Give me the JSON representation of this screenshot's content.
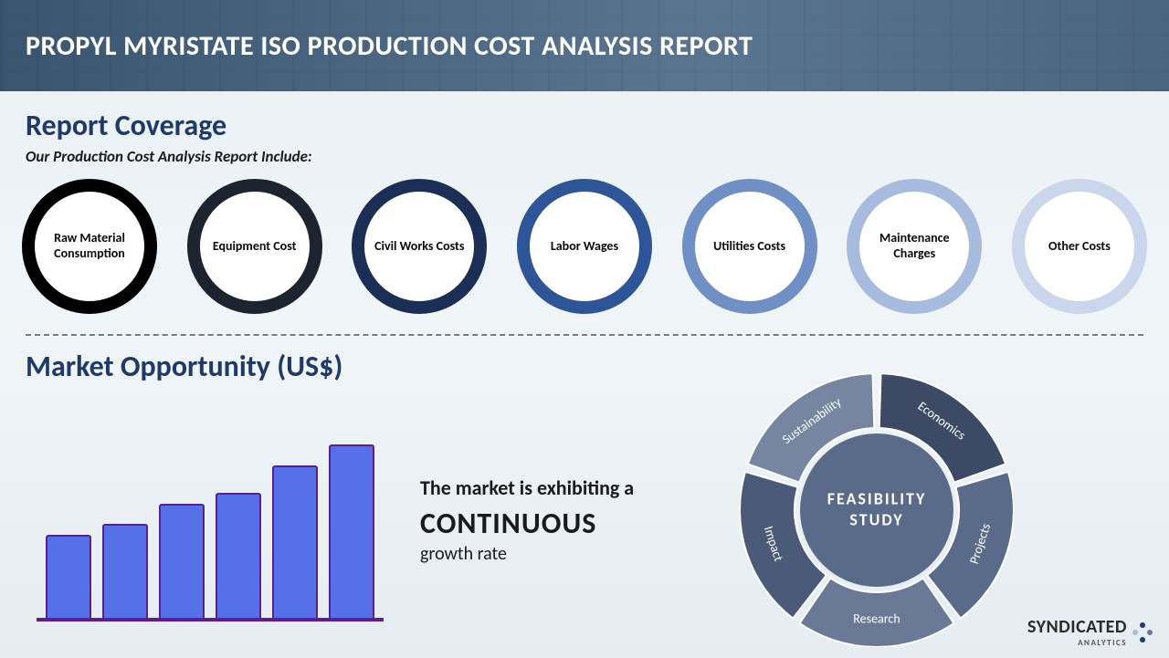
{
  "header": {
    "title": "PROPYL MYRISTATE ISO PRODUCTION COST ANALYSIS REPORT"
  },
  "coverage": {
    "title": "Report Coverage",
    "subtitle": "Our Production Cost Analysis Report Include:",
    "items": [
      {
        "label": "Raw Material Consumption",
        "ring_color": "#000000"
      },
      {
        "label": "Equipment Cost",
        "ring_color": "#1c2430"
      },
      {
        "label": "Civil Works Costs",
        "ring_color": "#1b2e55"
      },
      {
        "label": "Labor Wages",
        "ring_color": "#2d5598"
      },
      {
        "label": "Utilities Costs",
        "ring_color": "#6f8fc5"
      },
      {
        "label": "Maintenance Charges",
        "ring_color": "#a7bbde"
      },
      {
        "label": "Other Costs",
        "ring_color": "#c9d6eb"
      }
    ],
    "circle_border_width": 14,
    "circle_diameter": 148,
    "circle_fill": "#ffffff",
    "label_fontsize": 14,
    "label_color": "#0a0a0a"
  },
  "market": {
    "title": "Market Opportunity (US$)",
    "chart": {
      "type": "bar",
      "values": [
        48,
        54,
        66,
        72,
        88,
        100
      ],
      "bar_color": "#5570e8",
      "bar_border_color": "#5b1f8e",
      "axis_color": "#5b1f8e",
      "bar_gap": 12,
      "ylim": [
        0,
        100
      ]
    },
    "text_line1": "The market is exhibiting a",
    "text_word": "CONTINUOUS",
    "text_line2": "growth rate"
  },
  "feasibility": {
    "center_line1": "FEASIBILITY",
    "center_line2": "STUDY",
    "segments": [
      {
        "label": "Economics",
        "color": "#3d4a66"
      },
      {
        "label": "Projects",
        "color": "#5a6b8a"
      },
      {
        "label": "Research",
        "color": "#6a7a96"
      },
      {
        "label": "Impact",
        "color": "#4a5a78"
      },
      {
        "label": "Sustainability",
        "color": "#7686a0"
      }
    ],
    "center_color": "#5a6b8a",
    "outer_radius": 150,
    "inner_radius": 90
  },
  "logo": {
    "text": "SYNDICATED",
    "subtext": "ANALYTICS",
    "dot_colors": [
      "#1f3a68",
      "#6a7a96",
      "#1f3a68",
      "#a7bbde"
    ]
  },
  "colors": {
    "heading": "#1f3a68",
    "background_top": "#e8f0f5",
    "background_bottom": "#e5edf2",
    "divider": "#7a7a7a"
  }
}
